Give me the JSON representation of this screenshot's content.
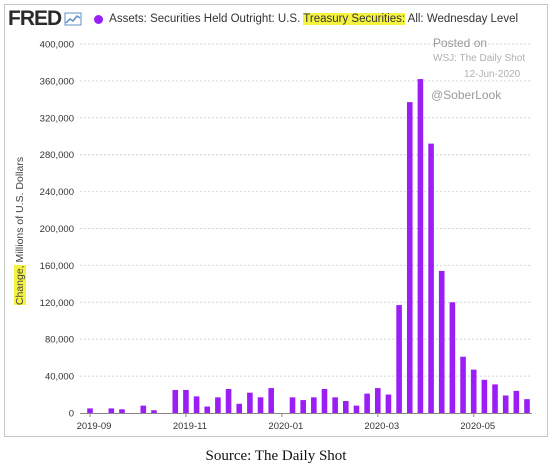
{
  "header": {
    "logo_text": "FRED",
    "legend_prefix": "Assets: Securities Held Outright: U.S. ",
    "legend_highlight": "Treasury Securities:",
    "legend_suffix": " All: Wednesday Level"
  },
  "watermark": {
    "posted_on": "Posted on",
    "source_name": "WSJ: The Daily Shot",
    "date": "12-Jun-2020",
    "handle": "@SoberLook"
  },
  "caption": "Source: The Daily Shot",
  "colors": {
    "bar": "#9b1ff5",
    "highlight": "#f6f340",
    "grid": "#cfd6e0"
  },
  "chart_data": {
    "type": "bar",
    "title": "Assets: Securities Held Outright: U.S. Treasury Securities: All: Wednesday Level",
    "ylabel_highlight": "Change,",
    "ylabel_rest": " Millions of U.S. Dollars",
    "ylim": [
      0,
      400000
    ],
    "yticks": [
      "0",
      "40,000",
      "80,000",
      "120,000",
      "160,000",
      "200,000",
      "240,000",
      "280,000",
      "320,000",
      "360,000",
      "400,000"
    ],
    "xticks": [
      "2019-09",
      "2019-11",
      "2020-01",
      "2020-03",
      "2020-05"
    ],
    "grid": true,
    "values": [
      5000,
      0,
      5000,
      4000,
      0,
      8000,
      3000,
      0,
      25000,
      25000,
      18000,
      7000,
      17000,
      26000,
      10000,
      22000,
      17000,
      27000,
      0,
      17000,
      14000,
      17000,
      26000,
      17000,
      13000,
      8000,
      21000,
      27000,
      20000,
      117000,
      337000,
      362000,
      292000,
      154000,
      120000,
      61000,
      47000,
      36000,
      31000,
      19000,
      24000,
      15000
    ]
  }
}
